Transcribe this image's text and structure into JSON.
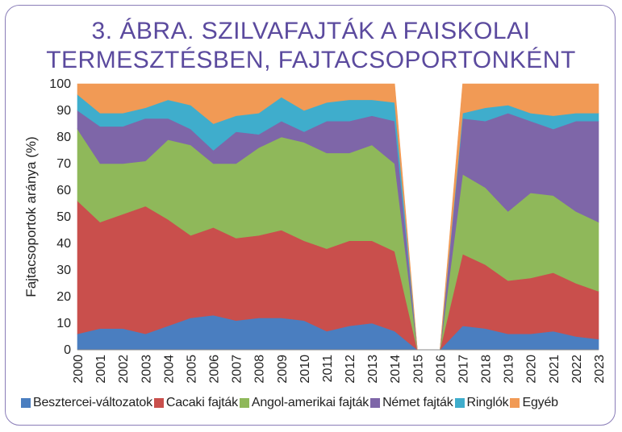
{
  "title_line1": "3. ÁBRA. SZILVAFAJTÁK A FAISKOLAI",
  "title_line2": "TERMESZTÉSBEN, FAJTACSOPORTONKÉNT",
  "chart_data": {
    "type": "area",
    "stacked": true,
    "title": "3. ÁBRA. SZILVAFAJTÁK A FAISKOLAI TERMESZTÉSBEN, FAJTACSOPORTONKÉNT",
    "xlabel": "",
    "ylabel": "Fajtacsoportok aránya (%)",
    "ylim": [
      0,
      100
    ],
    "yticks": [
      0,
      10,
      20,
      30,
      40,
      50,
      60,
      70,
      80,
      90,
      100
    ],
    "x": [
      "2000",
      "2001",
      "2002",
      "2003",
      "2004",
      "2005",
      "2006",
      "2007",
      "2008",
      "2009",
      "2010",
      "2011",
      "2012",
      "2013",
      "2014",
      "2015",
      "2016",
      "2017",
      "2018",
      "2019",
      "2020",
      "2021",
      "2022",
      "2023"
    ],
    "gap_years": [
      "2015",
      "2016"
    ],
    "legend_position": "bottom",
    "grid": false,
    "series": [
      {
        "name": "Besztercei-változatok",
        "color": "#4a7ec0",
        "values": [
          6,
          8,
          8,
          6,
          9,
          12,
          13,
          11,
          12,
          12,
          11,
          7,
          9,
          10,
          7,
          0,
          0,
          9,
          8,
          6,
          6,
          7,
          5,
          4
        ]
      },
      {
        "name": "Cacaki fajták",
        "color": "#c94f4c",
        "values": [
          50,
          40,
          43,
          48,
          40,
          31,
          33,
          31,
          31,
          33,
          30,
          31,
          32,
          31,
          30,
          0,
          0,
          27,
          24,
          20,
          21,
          22,
          20,
          18
        ]
      },
      {
        "name": "Angol-amerikai fajták",
        "color": "#8fb85a",
        "values": [
          27,
          22,
          19,
          17,
          30,
          34,
          24,
          28,
          33,
          35,
          37,
          36,
          33,
          36,
          33,
          0,
          0,
          30,
          29,
          26,
          32,
          29,
          27,
          26
        ]
      },
      {
        "name": "Német fajták",
        "color": "#7e66a8",
        "values": [
          7,
          14,
          14,
          16,
          8,
          6,
          5,
          12,
          5,
          6,
          4,
          12,
          12,
          11,
          16,
          0,
          0,
          21,
          25,
          37,
          27,
          25,
          34,
          38
        ]
      },
      {
        "name": "Ringlók",
        "color": "#3fadcc",
        "values": [
          6,
          5,
          5,
          4,
          7,
          9,
          10,
          6,
          8,
          9,
          8,
          7,
          8,
          6,
          7,
          0,
          0,
          2,
          5,
          3,
          3,
          5,
          3,
          3
        ]
      },
      {
        "name": "Egyéb",
        "color": "#f19a55",
        "values": [
          4,
          11,
          11,
          9,
          6,
          8,
          15,
          12,
          11,
          5,
          10,
          7,
          6,
          6,
          7,
          0,
          0,
          11,
          9,
          8,
          11,
          12,
          11,
          11
        ]
      }
    ]
  }
}
